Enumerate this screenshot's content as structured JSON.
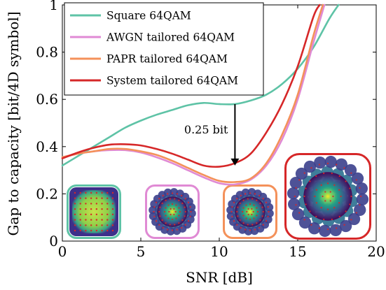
{
  "chart_data": {
    "type": "line",
    "title": "",
    "xlabel": "SNR [dB]",
    "ylabel": "Gap to capacity [bit/4D symbol]",
    "xlim": [
      0,
      20
    ],
    "ylim": [
      0,
      1
    ],
    "xticks": [
      0,
      5,
      10,
      15,
      20
    ],
    "yticks": [
      0,
      0.2,
      0.4,
      0.6,
      0.8,
      1
    ],
    "ytick_labels": [
      "0",
      "0.2",
      "0.4",
      "0.6",
      "0.8",
      "1"
    ],
    "grid": false,
    "legend_position": "top-left",
    "series": [
      {
        "name": "Square 64QAM",
        "color": "#5ec3a6",
        "x": [
          0,
          1,
          2,
          3,
          4,
          5,
          6,
          7,
          8,
          9,
          10,
          11,
          12,
          13,
          14,
          15,
          16,
          17,
          17.6
        ],
        "y": [
          0.32,
          0.36,
          0.4,
          0.44,
          0.48,
          0.51,
          0.535,
          0.555,
          0.575,
          0.585,
          0.58,
          0.58,
          0.595,
          0.62,
          0.665,
          0.73,
          0.82,
          0.94,
          1.0
        ]
      },
      {
        "name": "AWGN tailored 64QAM",
        "color": "#e08ad4",
        "x": [
          0,
          1,
          2,
          3,
          4,
          5,
          6,
          7,
          8,
          9,
          10,
          11,
          12,
          13,
          14,
          15,
          16,
          16.7
        ],
        "y": [
          0.355,
          0.37,
          0.38,
          0.385,
          0.385,
          0.375,
          0.355,
          0.33,
          0.3,
          0.27,
          0.245,
          0.24,
          0.26,
          0.32,
          0.43,
          0.6,
          0.84,
          1.0
        ]
      },
      {
        "name": "PAPR tailored 64QAM",
        "color": "#f4915a",
        "x": [
          0,
          1,
          2,
          3,
          4,
          5,
          6,
          7,
          8,
          9,
          10,
          11,
          12,
          13,
          14,
          15,
          16,
          16.6
        ],
        "y": [
          0.355,
          0.37,
          0.38,
          0.39,
          0.39,
          0.38,
          0.365,
          0.34,
          0.31,
          0.28,
          0.255,
          0.25,
          0.265,
          0.33,
          0.45,
          0.62,
          0.87,
          1.0
        ]
      },
      {
        "name": "System tailored 64QAM",
        "color": "#d62728",
        "x": [
          0,
          1,
          2,
          3,
          4,
          5,
          6,
          7,
          8,
          9,
          10,
          11,
          12,
          13,
          14,
          15,
          16,
          16.4
        ],
        "y": [
          0.35,
          0.375,
          0.395,
          0.408,
          0.41,
          0.405,
          0.39,
          0.37,
          0.345,
          0.32,
          0.315,
          0.33,
          0.37,
          0.46,
          0.58,
          0.74,
          0.95,
          1.0
        ]
      }
    ],
    "annotations": [
      {
        "text": "0.25 bit",
        "x": 11,
        "y_from": 0.58,
        "y_to": 0.32
      }
    ],
    "insets": [
      {
        "name": "square-64qam-constellation",
        "color": "#5ec3a6",
        "style": "square"
      },
      {
        "name": "awgn-tailored-constellation",
        "color": "#e08ad4",
        "style": "ring"
      },
      {
        "name": "papr-tailored-constellation",
        "color": "#f4915a",
        "style": "ring"
      },
      {
        "name": "system-tailored-constellation",
        "color": "#d62728",
        "style": "system"
      }
    ]
  }
}
